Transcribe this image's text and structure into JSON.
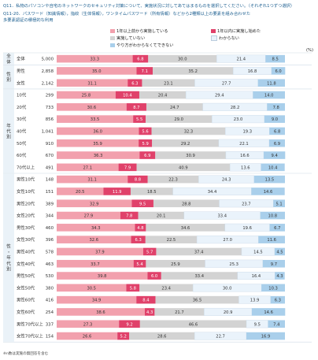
{
  "header": {
    "question": "Q11．私物のパソコンや自宅のネットワークのセキュリティ対策について、実施状況に対してあてはまるものを選択してください。（それぞれ1つずつ選択）",
    "sub_question": "Q11-20．パスワード（知識情報），指紋（生体情報），ワンタイムパスワード（所有情報）などから2種類以上の要素を組み合わせた",
    "sub_question_2": "多要素認証の積極的な利用",
    "unit": "(%)",
    "note": "※n数は実施の無回答を含む"
  },
  "colors": {
    "s1": "#f2a0ad",
    "s2": "#e0416a",
    "s3": "#d3d3d3",
    "s4": "#eaf3fb",
    "s5": "#a9cfeb",
    "group_bg": "#eaf2f8",
    "band_bg": "#eaf2f8"
  },
  "chart_data": {
    "type": "bar",
    "stacked": true,
    "orientation": "horizontal",
    "xlim": [
      0,
      100
    ],
    "legend_position": "top",
    "series": [
      {
        "name": "1年以上前から実施している"
      },
      {
        "name": "1年以内に実施し始めた"
      },
      {
        "name": "実施していない"
      },
      {
        "name": "わからない"
      },
      {
        "name": "やり方がわからなくてできない"
      }
    ],
    "groups": [
      {
        "label": "全体",
        "rows": [
          "全体"
        ]
      },
      {
        "label": "性別",
        "rows": [
          "男性",
          "女性"
        ]
      },
      {
        "label": "年代別",
        "rows": [
          "10代",
          "20代",
          "30代",
          "40代",
          "50代",
          "60代",
          "70代以上"
        ]
      },
      {
        "label": "性・年代別",
        "rows": [
          "男性10代",
          "女性10代",
          "男性20代",
          "女性20代",
          "男性30代",
          "女性30代",
          "男性40代",
          "女性40代",
          "男性50代",
          "女性50代",
          "男性60代",
          "女性60代",
          "男性70代以上",
          "女性70代以上"
        ]
      }
    ],
    "rows": [
      {
        "label": "全体",
        "n": "5,000",
        "values": [
          33.3,
          6.8,
          30.0,
          21.4,
          8.5
        ]
      },
      {
        "label": "男性",
        "n": "2,858",
        "values": [
          35.0,
          7.1,
          35.2,
          16.8,
          6.0
        ]
      },
      {
        "label": "女性",
        "n": "2,142",
        "values": [
          31.1,
          6.3,
          23.1,
          27.7,
          11.8
        ]
      },
      {
        "label": "10代",
        "n": "299",
        "values": [
          25.8,
          10.4,
          20.4,
          29.4,
          14.0
        ]
      },
      {
        "label": "20代",
        "n": "733",
        "values": [
          30.6,
          8.7,
          24.7,
          28.2,
          7.8
        ]
      },
      {
        "label": "30代",
        "n": "856",
        "values": [
          33.5,
          5.5,
          29.0,
          23.0,
          9.0
        ]
      },
      {
        "label": "40代",
        "n": "1,041",
        "values": [
          36.0,
          5.6,
          32.3,
          19.3,
          6.8
        ]
      },
      {
        "label": "50代",
        "n": "910",
        "values": [
          35.9,
          5.9,
          29.2,
          22.1,
          6.9
        ]
      },
      {
        "label": "60代",
        "n": "670",
        "values": [
          36.3,
          6.9,
          30.9,
          16.6,
          9.4
        ]
      },
      {
        "label": "70代以上",
        "n": "491",
        "values": [
          27.1,
          7.9,
          40.9,
          13.6,
          10.4
        ]
      },
      {
        "label": "男性10代",
        "n": "148",
        "values": [
          31.1,
          8.8,
          22.3,
          24.3,
          13.5
        ]
      },
      {
        "label": "女性10代",
        "n": "151",
        "values": [
          20.5,
          11.9,
          18.5,
          34.4,
          14.6
        ]
      },
      {
        "label": "男性20代",
        "n": "389",
        "values": [
          32.9,
          9.5,
          28.8,
          23.7,
          5.1
        ]
      },
      {
        "label": "女性20代",
        "n": "344",
        "values": [
          27.9,
          7.8,
          20.1,
          33.4,
          10.8
        ]
      },
      {
        "label": "男性30代",
        "n": "460",
        "values": [
          34.3,
          4.8,
          34.6,
          19.6,
          6.7
        ]
      },
      {
        "label": "女性30代",
        "n": "396",
        "values": [
          32.6,
          6.3,
          22.5,
          27.0,
          11.6
        ]
      },
      {
        "label": "男性40代",
        "n": "578",
        "values": [
          37.9,
          5.7,
          37.4,
          14.5,
          4.5
        ]
      },
      {
        "label": "女性40代",
        "n": "463",
        "values": [
          33.7,
          5.4,
          25.9,
          25.3,
          9.7
        ]
      },
      {
        "label": "男性50代",
        "n": "530",
        "values": [
          39.8,
          6.0,
          33.4,
          16.4,
          4.3
        ]
      },
      {
        "label": "女性50代",
        "n": "380",
        "values": [
          30.5,
          5.8,
          23.4,
          30.0,
          10.3
        ]
      },
      {
        "label": "男性60代",
        "n": "416",
        "values": [
          34.9,
          8.4,
          36.5,
          13.9,
          6.3
        ]
      },
      {
        "label": "女性60代",
        "n": "254",
        "values": [
          38.6,
          4.3,
          21.7,
          20.9,
          14.6
        ]
      },
      {
        "label": "男性70代以上",
        "n": "337",
        "values": [
          27.3,
          9.2,
          46.6,
          9.5,
          7.4
        ]
      },
      {
        "label": "女性70代以上",
        "n": "154",
        "values": [
          26.6,
          5.2,
          28.6,
          22.7,
          16.9
        ]
      }
    ]
  }
}
